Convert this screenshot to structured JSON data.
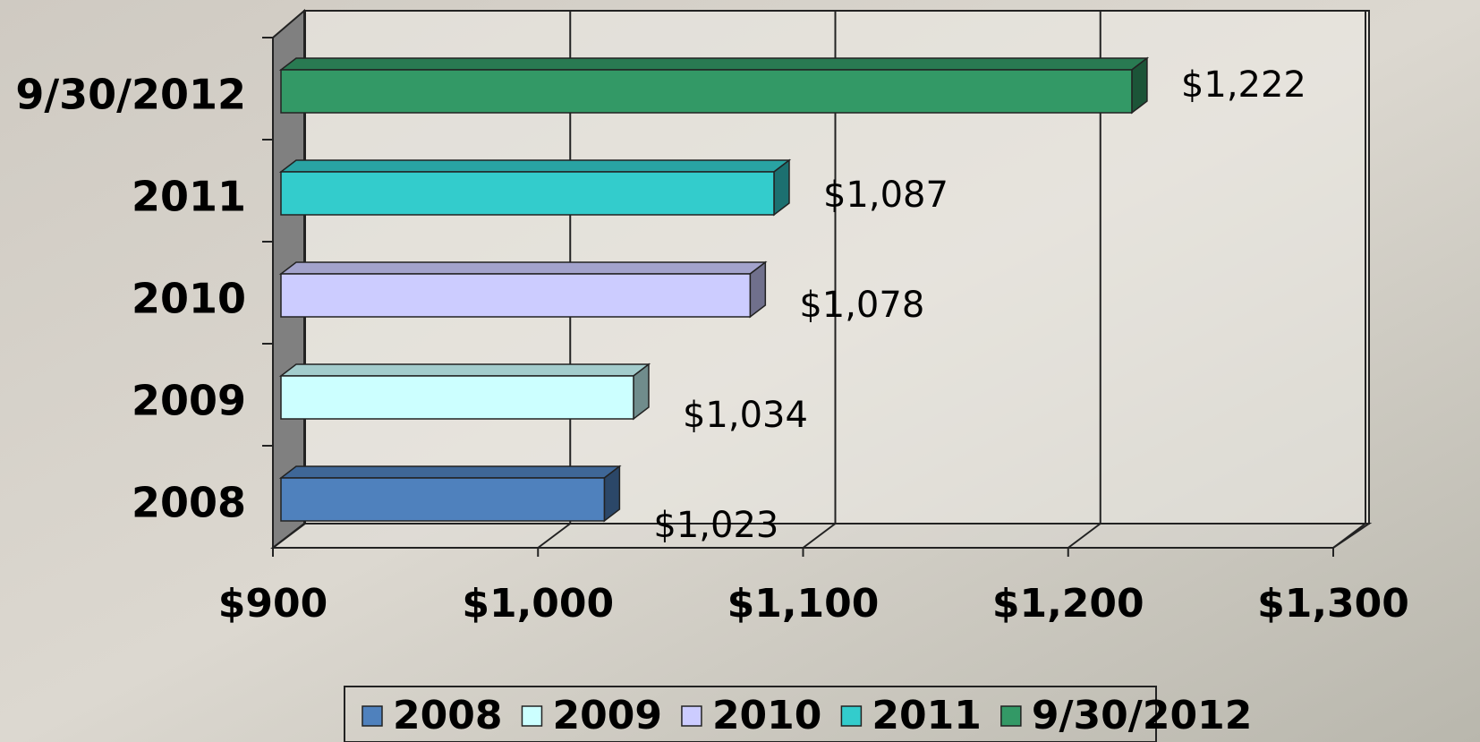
{
  "chart_data": {
    "type": "bar",
    "orientation": "horizontal",
    "three_d": true,
    "categories": [
      "2008",
      "2009",
      "2010",
      "2011",
      "9/30/2012"
    ],
    "values": [
      1023,
      1034,
      1078,
      1087,
      1222
    ],
    "value_labels": [
      "$1,023",
      "$1,034",
      "$1,078",
      "$1,087",
      "$1,222"
    ],
    "colors": [
      "#4f81bd",
      "#ccffff",
      "#ccccff",
      "#33cccc",
      "#339966"
    ],
    "xlim": [
      900,
      1300
    ],
    "xticks": [
      {
        "value": 900,
        "label": "$900"
      },
      {
        "value": 1000,
        "label": "$1,000"
      },
      {
        "value": 1100,
        "label": "$1,100"
      },
      {
        "value": 1200,
        "label": "$1,200"
      },
      {
        "value": 1300,
        "label": "$1,300"
      }
    ],
    "grid": true,
    "legend": "bottom"
  }
}
